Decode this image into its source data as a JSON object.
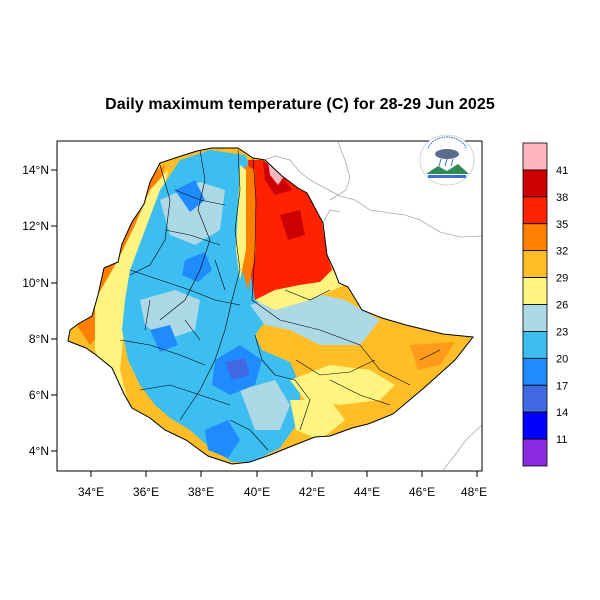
{
  "title": "Daily maximum temperature (C) for 28-29 Jun 2025",
  "map": {
    "x_ticks": [
      "34°E",
      "36°E",
      "38°E",
      "40°E",
      "42°E",
      "44°E",
      "46°E",
      "48°E"
    ],
    "y_ticks": [
      "14°N",
      "12°N",
      "10°N",
      "8°N",
      "6°N",
      "4°N"
    ]
  },
  "colorbar": {
    "colors": [
      "#FFB6C1",
      "#CC0000",
      "#FF2200",
      "#FF8000",
      "#FFBE26",
      "#FFF480",
      "#ADD8E6",
      "#3CBEF0",
      "#1E8CFF",
      "#4169E1",
      "#0000FF",
      "#8A2BE2"
    ],
    "labels": [
      "41",
      "38",
      "35",
      "32",
      "29",
      "26",
      "23",
      "20",
      "17",
      "14",
      "11"
    ]
  },
  "logo": {
    "icon": "meteorology-agency-logo"
  }
}
